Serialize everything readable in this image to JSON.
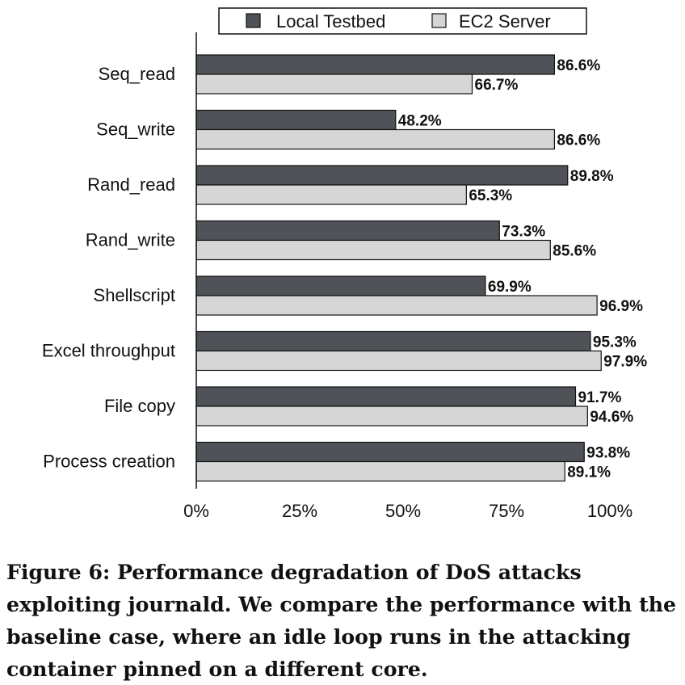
{
  "chart_data": {
    "type": "bar",
    "orientation": "horizontal",
    "categories": [
      "Seq_read",
      "Seq_write",
      "Rand_read",
      "Rand_write",
      "Shellscript",
      "Excel throughput",
      "File copy",
      "Process creation"
    ],
    "series": [
      {
        "name": "Local Testbed",
        "color": "#4f5257",
        "values": [
          86.6,
          48.2,
          89.8,
          73.3,
          69.9,
          95.3,
          91.7,
          93.8
        ],
        "labels": [
          "86.6%",
          "48.2%",
          "89.8%",
          "73.3%",
          "69.9%",
          "95.3%",
          "91.7%",
          "93.8%"
        ]
      },
      {
        "name": "EC2 Server",
        "color": "#d6d6d6",
        "values": [
          66.7,
          86.6,
          65.3,
          85.6,
          96.9,
          97.9,
          94.6,
          89.1
        ],
        "labels": [
          "66.7%",
          "86.6%",
          "65.3%",
          "85.6%",
          "96.9%",
          "97.9%",
          "94.6%",
          "89.1%"
        ]
      }
    ],
    "xlim": [
      0,
      100
    ],
    "xticks": [
      0,
      25,
      50,
      75,
      100
    ],
    "xtick_labels": [
      "0%",
      "25%",
      "50%",
      "75%",
      "100%"
    ],
    "grid": false,
    "legend_position": "top"
  },
  "caption": "Figure 6: Performance degradation of DoS attacks exploiting journald. We compare the performance with the baseline case, where an idle loop runs in the attacking container pinned on a different core."
}
